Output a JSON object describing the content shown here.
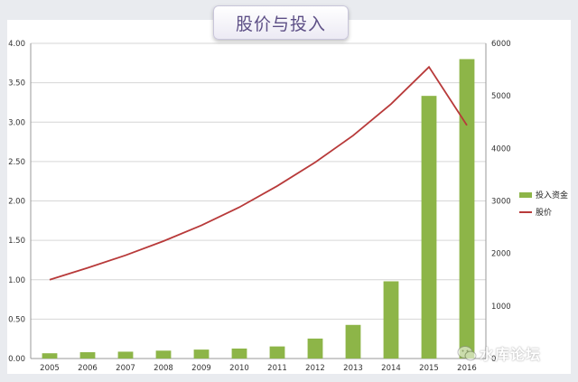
{
  "chart_data": {
    "type": "bar",
    "title": "股价与投入",
    "categories": [
      "2005",
      "2006",
      "2007",
      "2008",
      "2009",
      "2010",
      "2011",
      "2012",
      "2013",
      "2014",
      "2015",
      "2016"
    ],
    "series": [
      {
        "name": "投入资金",
        "kind": "bar",
        "axis": "right",
        "color": "#8db548",
        "values": [
          100,
          120,
          130,
          150,
          170,
          190,
          230,
          380,
          640,
          1470,
          5000,
          5700
        ]
      },
      {
        "name": "股价",
        "kind": "line",
        "axis": "left",
        "color": "#b83a3a",
        "values": [
          1.0,
          1.15,
          1.31,
          1.49,
          1.69,
          1.92,
          2.19,
          2.49,
          2.83,
          3.23,
          3.7,
          2.96
        ]
      }
    ],
    "ylim_left": [
      0,
      4
    ],
    "yticks_left": [
      "0.00",
      "0.50",
      "1.00",
      "1.50",
      "2.00",
      "2.50",
      "3.00",
      "3.50",
      "4.00"
    ],
    "ylim_right": [
      0,
      6000
    ],
    "yticks_right": [
      "0",
      "1000",
      "2000",
      "3000",
      "4000",
      "5000",
      "6000"
    ],
    "grid": true,
    "legend_position": "right"
  },
  "watermark": {
    "text": "水库论坛",
    "icon": "wechat-icon"
  }
}
